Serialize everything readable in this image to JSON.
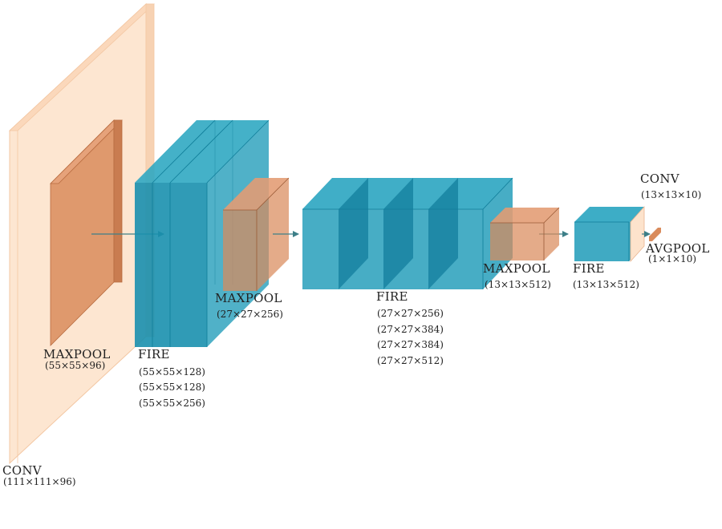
{
  "layers": [
    {
      "id": "conv1",
      "name": "CONV",
      "dims": [
        "(111×111×96)"
      ]
    },
    {
      "id": "maxpool1",
      "name": "MAXPOOL",
      "dims": [
        "(55×55×96)"
      ]
    },
    {
      "id": "fire1",
      "name": "FIRE",
      "dims": [
        "(55×55×128)",
        "(55×55×128)",
        "(55×55×256)"
      ]
    },
    {
      "id": "maxpool2",
      "name": "MAXPOOL",
      "dims": [
        "(27×27×256)"
      ]
    },
    {
      "id": "fire2",
      "name": "FIRE",
      "dims": [
        "(27×27×256)",
        "(27×27×384)",
        "(27×27×384)",
        "(27×27×512)"
      ]
    },
    {
      "id": "maxpool3",
      "name": "MAXPOOL",
      "dims": [
        "(13×13×512)"
      ]
    },
    {
      "id": "fire3",
      "name": "FIRE",
      "dims": [
        "(13×13×512)"
      ]
    },
    {
      "id": "conv10",
      "name": "CONV",
      "dims": [
        "(13×13×10)"
      ]
    },
    {
      "id": "avgpool",
      "name": "AVGPOOL",
      "dims": [
        "(1×1×10)"
      ]
    }
  ],
  "colors": {
    "conv": "#fde3cc",
    "pool": "#d98b5c",
    "fire": "#1f9bb8",
    "arrow": "#3d7f88"
  }
}
